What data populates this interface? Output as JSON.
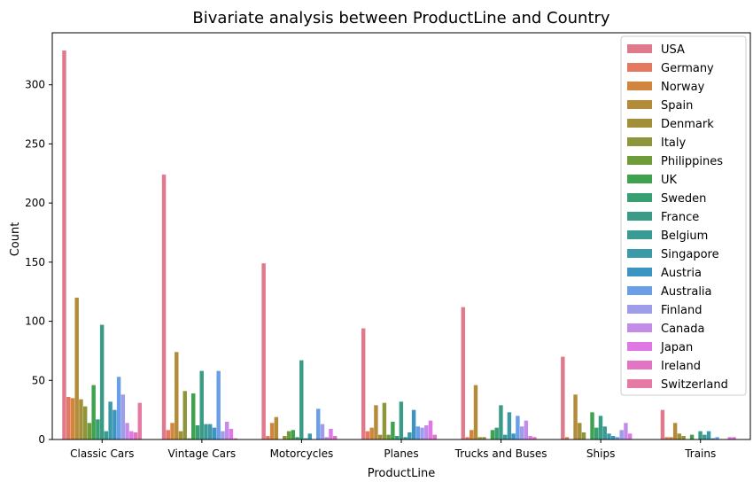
{
  "chart_data": {
    "type": "bar",
    "title": "Bivariate analysis between ProductLine and Country",
    "xlabel": "ProductLine",
    "ylabel": "Count",
    "ylim": [
      0,
      344
    ],
    "yticks": [
      0,
      50,
      100,
      150,
      200,
      250,
      300
    ],
    "grid": false,
    "legend_position": "top-right",
    "categories": [
      "Classic Cars",
      "Vintage Cars",
      "Motorcycles",
      "Planes",
      "Trucks and Buses",
      "Ships",
      "Trains"
    ],
    "series": [
      {
        "name": "USA",
        "color": "#e1798c",
        "values": [
          329,
          224,
          149,
          94,
          112,
          70,
          25
        ]
      },
      {
        "name": "Germany",
        "color": "#e5795f",
        "values": [
          36,
          8,
          3,
          7,
          2,
          2,
          2
        ]
      },
      {
        "name": "Norway",
        "color": "#d2853f",
        "values": [
          35,
          14,
          14,
          10,
          8,
          0,
          2
        ]
      },
      {
        "name": "Spain",
        "color": "#b48c39",
        "values": [
          120,
          74,
          19,
          29,
          46,
          38,
          14
        ]
      },
      {
        "name": "Denmark",
        "color": "#a28f3a",
        "values": [
          34,
          7,
          0,
          4,
          2,
          14,
          5
        ]
      },
      {
        "name": "Italy",
        "color": "#8f953b",
        "values": [
          28,
          41,
          3,
          31,
          2,
          6,
          3
        ]
      },
      {
        "name": "Philippines",
        "color": "#6e9c3a",
        "values": [
          14,
          1,
          7,
          4,
          0,
          0,
          0
        ]
      },
      {
        "name": "UK",
        "color": "#3ea24e",
        "values": [
          46,
          39,
          8,
          15,
          8,
          23,
          4
        ]
      },
      {
        "name": "Sweden",
        "color": "#3a9e73",
        "values": [
          17,
          12,
          2,
          3,
          10,
          10,
          0
        ]
      },
      {
        "name": "France",
        "color": "#3a9c86",
        "values": [
          97,
          58,
          67,
          32,
          29,
          20,
          7
        ]
      },
      {
        "name": "Belgium",
        "color": "#3a9a94",
        "values": [
          7,
          13,
          1,
          2,
          4,
          11,
          4
        ]
      },
      {
        "name": "Singapore",
        "color": "#3c9aa8",
        "values": [
          32,
          13,
          5,
          6,
          23,
          5,
          7
        ]
      },
      {
        "name": "Austria",
        "color": "#3b95c0",
        "values": [
          25,
          10,
          0,
          25,
          5,
          3,
          1
        ]
      },
      {
        "name": "Australia",
        "color": "#6a9ee6",
        "values": [
          53,
          58,
          26,
          11,
          20,
          2,
          2
        ]
      },
      {
        "name": "Finland",
        "color": "#9d9de9",
        "values": [
          38,
          7,
          13,
          10,
          11,
          8,
          0
        ]
      },
      {
        "name": "Canada",
        "color": "#c38ce9",
        "values": [
          14,
          15,
          2,
          12,
          16,
          14,
          0
        ]
      },
      {
        "name": "Japan",
        "color": "#df78e4",
        "values": [
          7,
          9,
          9,
          16,
          3,
          5,
          2
        ]
      },
      {
        "name": "Ireland",
        "color": "#e374c3",
        "values": [
          6,
          1,
          3,
          4,
          2,
          0,
          2
        ]
      },
      {
        "name": "Switzerland",
        "color": "#e57aa2",
        "values": [
          31,
          0,
          0,
          0,
          0,
          0,
          0
        ]
      }
    ]
  }
}
